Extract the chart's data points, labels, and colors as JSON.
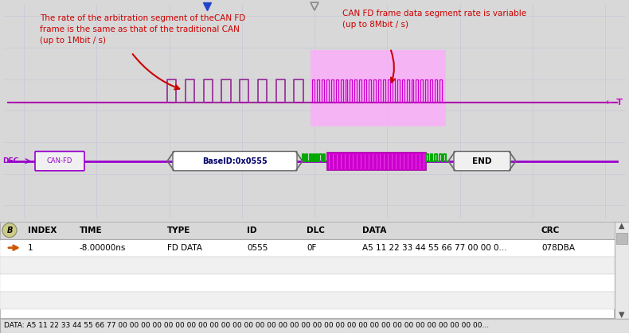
{
  "bg_color": "#d8d8d8",
  "scope_bg": "#eeeef5",
  "grid_color": "#c8c8d8",
  "left_annotation": "The rate of the arbitration segment of theCAN FD\nframe is the same as that of the traditional CAN\n(up to 1Mbit / s)",
  "right_annotation": "CAN FD frame data segment rate is variable\n(up to 8Mbit / s)",
  "annotation_color": "#cc0000",
  "signal_line_color": "#aa00aa",
  "t_label": "← T",
  "dec_label": "DEC",
  "can_fd_label": "CAN-FD",
  "table_headers": [
    "INDEX",
    "TIME",
    "TYPE",
    "ID",
    "DLC",
    "DATA",
    "CRC"
  ],
  "table_row1": [
    "1",
    "-8.00000ns",
    "FD DATA",
    "0555",
    "0F",
    "A5 11 22 33 44 55 66 77 00 00 0...",
    "078DBA"
  ],
  "bottom_text": "DATA: A5 11 22 33 44 55 66 77 00 00 00 00 00 00 00 00 00 00 00 00 00 00 00 00 00 00 00 00 00 00 00 00 00 00 00 00 00 00 00 00..."
}
